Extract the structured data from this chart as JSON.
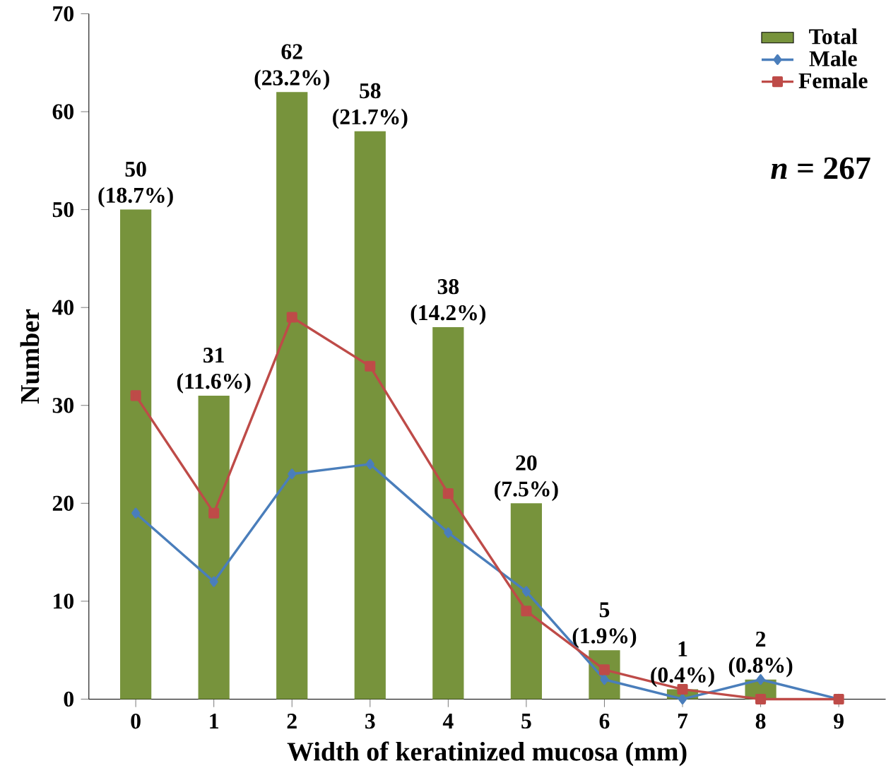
{
  "chart_data": {
    "type": "bar",
    "xlabel": "Width of keratinized mucosa (mm)",
    "ylabel": "Number",
    "categories": [
      "0",
      "1",
      "2",
      "3",
      "4",
      "5",
      "6",
      "7",
      "8",
      "9"
    ],
    "series": [
      {
        "name": "Total",
        "color": "#77933c",
        "values": [
          50,
          31,
          62,
          58,
          38,
          20,
          5,
          1,
          2,
          null
        ],
        "value_labels": [
          "50 (18.7%)",
          "31 (11.6%)",
          "62 (23.2%)",
          "58 (21.7%)",
          "38 (14.2%)",
          "20 (7.5%)",
          "5 (1.9%)",
          "1 (0.4%)",
          "2 (0.8%)",
          null
        ]
      },
      {
        "name": "Male",
        "type": "line",
        "color": "#4a7ebb",
        "marker": "diamond",
        "values": [
          19,
          12,
          23,
          24,
          17,
          11,
          2,
          0,
          2,
          0
        ]
      },
      {
        "name": "Female",
        "type": "line",
        "color": "#be4b48",
        "marker": "square",
        "values": [
          31,
          19,
          39,
          34,
          21,
          9,
          3,
          1,
          0,
          0
        ]
      }
    ],
    "ylim": [
      0,
      70
    ],
    "yticks": [
      0,
      10,
      20,
      30,
      40,
      50,
      60,
      70
    ],
    "grid": false,
    "legend": "top right",
    "annotations": [
      "*n* = 267"
    ]
  }
}
